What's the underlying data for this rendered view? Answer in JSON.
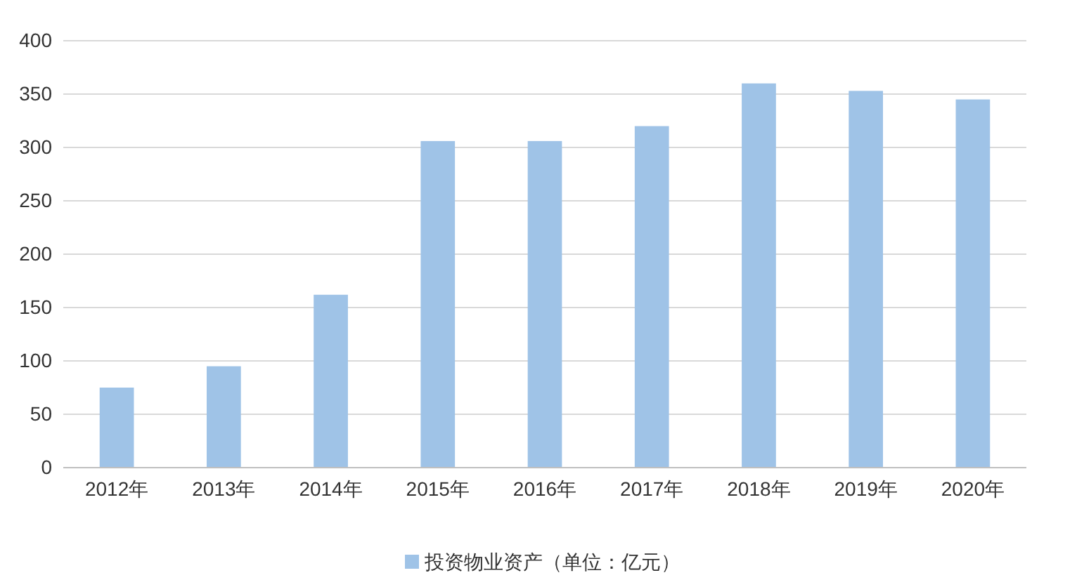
{
  "chart_data": {
    "type": "bar",
    "categories": [
      "2012年",
      "2013年",
      "2014年",
      "2015年",
      "2016年",
      "2017年",
      "2018年",
      "2019年",
      "2020年"
    ],
    "series": [
      {
        "name": "投资物业资产（单位：亿元）",
        "color": "#9fc3e7",
        "values": [
          75,
          95,
          162,
          306,
          306,
          320,
          360,
          353,
          345
        ]
      }
    ],
    "ylim": [
      0,
      400
    ],
    "yticks": [
      0,
      50,
      100,
      150,
      200,
      250,
      300,
      350,
      400
    ],
    "grid": "y",
    "legend": "bottom"
  }
}
